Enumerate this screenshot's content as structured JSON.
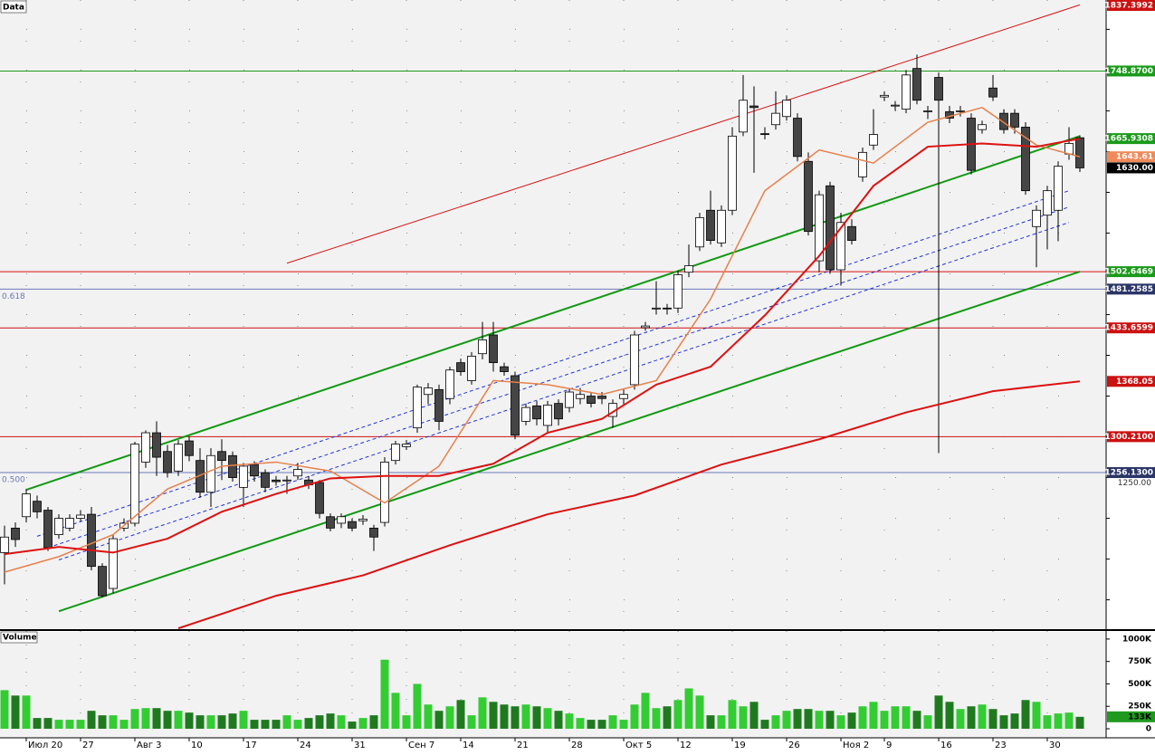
{
  "chart_data": {
    "type": "candlestick",
    "title": "Data",
    "volume_title": "Volume",
    "categories": [
      null,
      null,
      "Июл 20",
      null,
      null,
      null,
      null,
      "27",
      null,
      null,
      null,
      null,
      "Авг 3",
      null,
      null,
      null,
      null,
      "10",
      null,
      null,
      null,
      null,
      "17",
      null,
      null,
      null,
      null,
      "24",
      null,
      null,
      null,
      null,
      "31",
      null,
      null,
      null,
      null,
      "Сен 7",
      null,
      null,
      null,
      null,
      "14",
      null,
      null,
      null,
      null,
      "21",
      null,
      null,
      null,
      null,
      "28",
      null,
      null,
      null,
      null,
      "Окт 5",
      null,
      null,
      null,
      null,
      "12",
      null,
      null,
      null,
      null,
      "19",
      null,
      null,
      null,
      null,
      "26",
      null,
      null,
      null,
      null,
      "Ноя 2",
      null,
      null,
      null,
      "9",
      null,
      null,
      null,
      null,
      "16",
      null,
      null,
      null,
      null,
      "23",
      null,
      null,
      null,
      null,
      "30",
      null,
      null,
      null
    ],
    "candles": [
      [
        1158,
        1191,
        1119,
        1177
      ],
      [
        1188,
        1195,
        1165,
        1174
      ],
      [
        1202,
        1236,
        1195,
        1230
      ],
      [
        1221,
        1228,
        1200,
        1208
      ],
      [
        1210,
        1214,
        1160,
        1164
      ],
      [
        1180,
        1205,
        1175,
        1200
      ],
      [
        1188,
        1205,
        1184,
        1200
      ],
      [
        1200,
        1210,
        1196,
        1204
      ],
      [
        1205,
        1214,
        1136,
        1141
      ],
      [
        1141,
        1145,
        1103,
        1105
      ],
      [
        1114,
        1180,
        1108,
        1175
      ],
      [
        1188,
        1200,
        1184,
        1194
      ],
      [
        1194,
        1294,
        1190,
        1291
      ],
      [
        1269,
        1308,
        1262,
        1305
      ],
      [
        1305,
        1319,
        1252,
        1275
      ],
      [
        1282,
        1290,
        1250,
        1256
      ],
      [
        1258,
        1296,
        1252,
        1291
      ],
      [
        1295,
        1300,
        1270,
        1277
      ],
      [
        1271,
        1286,
        1225,
        1232
      ],
      [
        1232,
        1286,
        1214,
        1277
      ],
      [
        1282,
        1297,
        1247,
        1271
      ],
      [
        1277,
        1282,
        1245,
        1250
      ],
      [
        1238,
        1268,
        1214,
        1264
      ],
      [
        1266,
        1270,
        1245,
        1252
      ],
      [
        1256,
        1260,
        1232,
        1238
      ],
      [
        1247,
        1252,
        1240,
        1245
      ],
      [
        1246,
        1252,
        1230,
        1247
      ],
      [
        1252,
        1268,
        1247,
        1260
      ],
      [
        1247,
        1252,
        1236,
        1241
      ],
      [
        1244,
        1247,
        1200,
        1206
      ],
      [
        1202,
        1206,
        1184,
        1188
      ],
      [
        1194,
        1206,
        1188,
        1202
      ],
      [
        1196,
        1200,
        1184,
        1188
      ],
      [
        1197,
        1204,
        1192,
        1199
      ],
      [
        1188,
        1192,
        1160,
        1177
      ],
      [
        1195,
        1275,
        1190,
        1269
      ],
      [
        1271,
        1295,
        1266,
        1291
      ],
      [
        1288,
        1296,
        1284,
        1291
      ],
      [
        1311,
        1364,
        1305,
        1361
      ],
      [
        1352,
        1366,
        1340,
        1360
      ],
      [
        1358,
        1364,
        1308,
        1319
      ],
      [
        1347,
        1386,
        1340,
        1382
      ],
      [
        1391,
        1396,
        1375,
        1380
      ],
      [
        1369,
        1404,
        1364,
        1399
      ],
      [
        1402,
        1441,
        1395,
        1419
      ],
      [
        1425,
        1441,
        1380,
        1391
      ],
      [
        1386,
        1391,
        1375,
        1380
      ],
      [
        1375,
        1380,
        1297,
        1302
      ],
      [
        1319,
        1341,
        1314,
        1336
      ],
      [
        1338,
        1344,
        1314,
        1322
      ],
      [
        1314,
        1344,
        1305,
        1339
      ],
      [
        1341,
        1346,
        1314,
        1322
      ],
      [
        1336,
        1360,
        1330,
        1355
      ],
      [
        1347,
        1360,
        1340,
        1352
      ],
      [
        1350,
        1355,
        1336,
        1341
      ],
      [
        1350,
        1355,
        1340,
        1347
      ],
      [
        1325,
        1346,
        1311,
        1341
      ],
      [
        1347,
        1358,
        1340,
        1352
      ],
      [
        1364,
        1430,
        1358,
        1425
      ],
      [
        1434,
        1441,
        1430,
        1436
      ],
      [
        1457,
        1491,
        1450,
        1458
      ],
      [
        1458,
        1463,
        1450,
        1457
      ],
      [
        1458,
        1504,
        1452,
        1499
      ],
      [
        1502,
        1536,
        1496,
        1510
      ],
      [
        1533,
        1575,
        1528,
        1569
      ],
      [
        1578,
        1602,
        1536,
        1541
      ],
      [
        1538,
        1584,
        1533,
        1578
      ],
      [
        1578,
        1680,
        1572,
        1669
      ],
      [
        1674,
        1744,
        1669,
        1713
      ],
      [
        1706,
        1730,
        1624,
        1704
      ],
      [
        1672,
        1680,
        1665,
        1671
      ],
      [
        1683,
        1724,
        1677,
        1697
      ],
      [
        1693,
        1719,
        1688,
        1713
      ],
      [
        1691,
        1697,
        1638,
        1644
      ],
      [
        1638,
        1649,
        1547,
        1552
      ],
      [
        1516,
        1602,
        1502,
        1597
      ],
      [
        1608,
        1613,
        1500,
        1505
      ],
      [
        1505,
        1575,
        1486,
        1563
      ],
      [
        1558,
        1567,
        1536,
        1541
      ],
      [
        1619,
        1655,
        1613,
        1649
      ],
      [
        1658,
        1702,
        1652,
        1671
      ],
      [
        1717,
        1724,
        1712,
        1719
      ],
      [
        1706,
        1712,
        1700,
        1707
      ],
      [
        1702,
        1750,
        1697,
        1744
      ],
      [
        1752,
        1769,
        1708,
        1713
      ],
      [
        1699,
        1706,
        1690,
        1700
      ],
      [
        1741,
        1747,
        1280,
        1713
      ],
      [
        1699,
        1706,
        1685,
        1691
      ],
      [
        1699,
        1706,
        1693,
        1700
      ],
      [
        1691,
        1697,
        1622,
        1627
      ],
      [
        1677,
        1688,
        1672,
        1683
      ],
      [
        1728,
        1744,
        1712,
        1717
      ],
      [
        1697,
        1702,
        1672,
        1677
      ],
      [
        1697,
        1702,
        1672,
        1680
      ],
      [
        1680,
        1686,
        1597,
        1602
      ],
      [
        1558,
        1584,
        1508,
        1578
      ],
      [
        1572,
        1608,
        1530,
        1602
      ],
      [
        1578,
        1638,
        1540,
        1632
      ],
      [
        1647,
        1680,
        1640,
        1660
      ],
      [
        1667,
        1670,
        1625,
        1630
      ]
    ],
    "up_color": "#ffffff",
    "down_color": "#454545",
    "edge_color": "#000000",
    "volume": [
      430000,
      370000,
      370000,
      120000,
      120000,
      100000,
      100000,
      100000,
      200000,
      150000,
      150000,
      100000,
      220000,
      230000,
      230000,
      200000,
      200000,
      180000,
      150000,
      150000,
      150000,
      170000,
      200000,
      100000,
      100000,
      100000,
      150000,
      100000,
      120000,
      150000,
      170000,
      150000,
      80000,
      120000,
      150000,
      770000,
      400000,
      150000,
      500000,
      270000,
      200000,
      250000,
      320000,
      150000,
      350000,
      300000,
      270000,
      250000,
      270000,
      250000,
      230000,
      200000,
      170000,
      120000,
      100000,
      100000,
      150000,
      100000,
      270000,
      400000,
      230000,
      250000,
      320000,
      450000,
      370000,
      150000,
      150000,
      320000,
      250000,
      300000,
      100000,
      150000,
      200000,
      220000,
      220000,
      200000,
      200000,
      150000,
      180000,
      250000,
      300000,
      200000,
      250000,
      250000,
      200000,
      150000,
      370000,
      300000,
      220000,
      250000,
      270000,
      220000,
      150000,
      170000,
      320000,
      300000,
      150000,
      170000,
      180000,
      133000
    ],
    "volume_up_color": "#33cc33",
    "volume_down_color": "#1f7a1f",
    "volume_ylim": [
      0,
      1090000
    ],
    "volume_yticks": [
      {
        "value": 1000000,
        "label": "1000K"
      },
      {
        "value": 750000,
        "label": "750K"
      },
      {
        "value": 500000,
        "label": "500K"
      },
      {
        "value": 250000,
        "label": "250K"
      },
      0
    ],
    "volume_marker": {
      "value": 133000,
      "label": "133K",
      "color": "#1f9a1f"
    },
    "ylim": [
      1064,
      1836
    ],
    "yticks": [
      1100,
      1150,
      1200,
      {
        "value": 1250,
        "label": "1250.00"
      },
      1300,
      1350,
      1400,
      1450,
      1500,
      1550,
      1600,
      1650,
      1700,
      1750,
      1800
    ],
    "grid": true,
    "overlays": [
      {
        "color": "#e8804a",
        "width": 1.5,
        "x": [
          0,
          5,
          10,
          15,
          20,
          25,
          30,
          35,
          40,
          45,
          50,
          55,
          60,
          65,
          70,
          75,
          80,
          85,
          90,
          95,
          99
        ],
        "values": [
          1134,
          1153,
          1180,
          1236,
          1264,
          1269,
          1258,
          1219,
          1264,
          1369,
          1364,
          1352,
          1369,
          1469,
          1602,
          1652,
          1636,
          1686,
          1704,
          1658,
          1643.61
        ]
      },
      {
        "color": "#dd1111",
        "width": 2,
        "x": [
          0,
          5,
          10,
          15,
          20,
          25,
          30,
          35,
          40,
          45,
          50,
          55,
          60,
          65,
          70,
          75,
          80,
          85,
          90,
          95,
          99
        ],
        "values": [
          1156,
          1165,
          1158,
          1175,
          1208,
          1230,
          1249,
          1252,
          1252,
          1267,
          1305,
          1322,
          1364,
          1386,
          1449,
          1522,
          1608,
          1656,
          1660,
          1656,
          1665.9308
        ]
      },
      {
        "color": "#dd1111",
        "width": 2,
        "x": [
          16,
          25,
          33,
          41,
          50,
          58,
          66,
          75,
          83,
          91,
          99
        ],
        "values": [
          1065,
          1105,
          1130,
          1167,
          1205,
          1228,
          1266,
          1297,
          1330,
          1356,
          1368.05
        ]
      }
    ],
    "trend_lines": [
      {
        "color": "#dd1111",
        "width": 1,
        "dashed": false,
        "x": [
          26,
          99
        ],
        "values": [
          1513,
          1830
        ]
      },
      {
        "color": "#119911",
        "width": 2,
        "dashed": false,
        "x": [
          2,
          99
        ],
        "values": [
          1235,
          1669
        ]
      },
      {
        "color": "#119911",
        "width": 2,
        "dashed": false,
        "x": [
          5,
          99
        ],
        "values": [
          1086,
          1502.6469
        ]
      },
      {
        "color": "#2233dd",
        "width": 1,
        "dashed": true,
        "x": [
          3,
          98
        ],
        "values": [
          1178,
          1602
        ]
      },
      {
        "color": "#2233dd",
        "width": 1,
        "dashed": true,
        "x": [
          4,
          98
        ],
        "values": [
          1164,
          1582
        ]
      },
      {
        "color": "#2233dd",
        "width": 1,
        "dashed": true,
        "x": [
          5,
          98
        ],
        "values": [
          1149,
          1563
        ]
      }
    ],
    "markers": [
      {
        "value": 1837.3992,
        "label": "1837.3992",
        "color": "#cc1111",
        "line": false
      },
      {
        "value": 1748.87,
        "label": "1748.8700",
        "color": "#1a9a1a",
        "line": true
      },
      {
        "value": 1665.9308,
        "label": "1665.9308",
        "color": "#1a9a1a",
        "line": false
      },
      {
        "value": 1643.61,
        "label": "1643.61",
        "color": "#f08a5a",
        "line": false
      },
      {
        "value": 1630,
        "label": "1630.00",
        "color": "#000000",
        "line": false
      },
      {
        "value": 1502.6469,
        "label": "1502.6469",
        "color": "#1a9a1a",
        "line": true,
        "line_color": "#dd1111"
      },
      {
        "value": 1481.2585,
        "label": "1481.2585",
        "color": "#2b3566",
        "line": true,
        "line_color": "#6a78b8",
        "level_label": "0.618"
      },
      {
        "value": 1433.6599,
        "label": "1433.6599",
        "color": "#cc1111",
        "line": true
      },
      {
        "value": 1368.05,
        "label": "1368.05",
        "color": "#cc1111",
        "line": false
      },
      {
        "value": 1300.21,
        "label": "1300.2100",
        "color": "#cc1111",
        "line": true
      },
      {
        "value": 1256.13,
        "label": "1256.1300",
        "color": "#2b3566",
        "line": true,
        "line_color": "#6a78b8",
        "level_label": "0.500"
      }
    ]
  }
}
